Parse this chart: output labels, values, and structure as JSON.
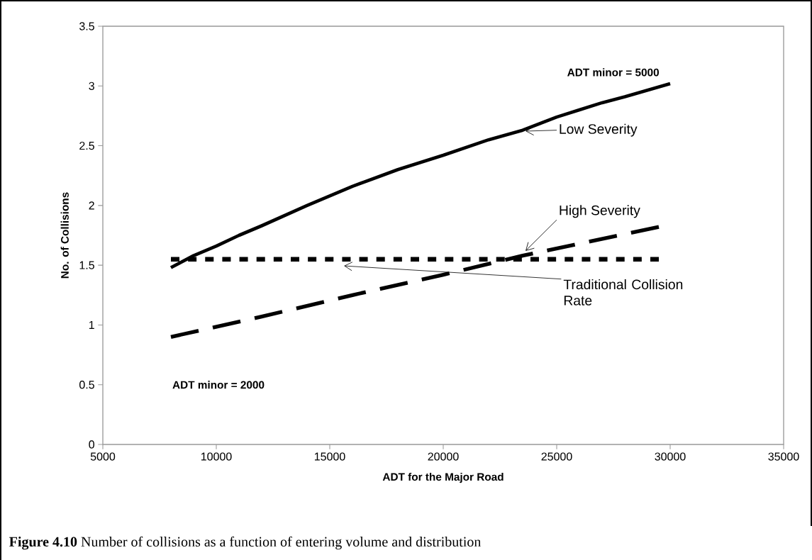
{
  "chart_data": {
    "type": "line",
    "xlabel": "ADT for the Major Road",
    "ylabel": "No. of Collisions",
    "xlim": [
      5000,
      35000
    ],
    "xticks": [
      5000,
      10000,
      15000,
      20000,
      25000,
      30000,
      35000
    ],
    "ylim": [
      0,
      3.5
    ],
    "yticks": [
      0,
      0.5,
      1,
      1.5,
      2,
      2.5,
      3,
      3.5
    ],
    "series": [
      {
        "name": "Low Severity",
        "color": "#000000",
        "line_style": "solid",
        "x": [
          8000,
          9000,
          10000,
          11000,
          12000,
          14000,
          16000,
          18000,
          20000,
          22000,
          23500,
          25000,
          26000,
          27000,
          28000,
          30000
        ],
        "values": [
          1.48,
          1.58,
          1.66,
          1.75,
          1.83,
          2.0,
          2.16,
          2.3,
          2.42,
          2.55,
          2.63,
          2.74,
          2.8,
          2.86,
          2.91,
          3.02
        ]
      },
      {
        "name": "High Severity",
        "color": "#000000",
        "line_style": "dashed",
        "x": [
          8000,
          12000,
          16000,
          20000,
          23500,
          26000,
          29500
        ],
        "values": [
          0.9,
          1.07,
          1.25,
          1.42,
          1.58,
          1.68,
          1.82
        ]
      },
      {
        "name": "Traditional Collision Rate",
        "color": "#000000",
        "line_style": "dotted",
        "x": [
          8000,
          15500,
          29500
        ],
        "values": [
          1.55,
          1.55,
          1.55
        ]
      }
    ],
    "annotations": [
      "ADT minor = 5000",
      "ADT minor = 2000",
      "**Figure 4.10** Number of collisions as a function of entering volume and distribution"
    ]
  }
}
